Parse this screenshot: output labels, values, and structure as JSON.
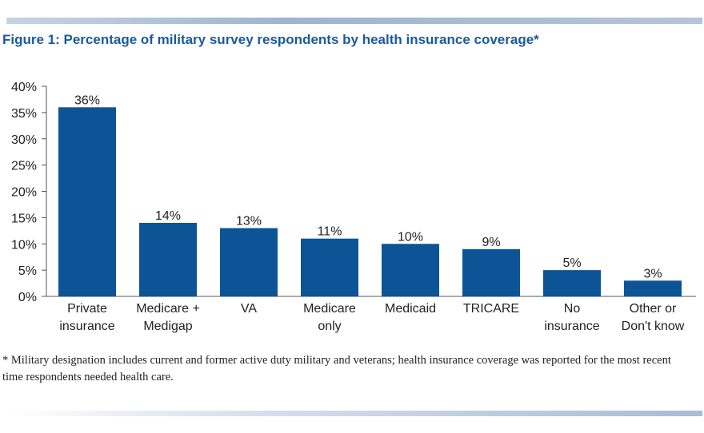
{
  "chart_data": {
    "type": "bar",
    "title": "Figure 1: Percentage of military survey respondents by health insurance coverage*",
    "xlabel": "",
    "ylabel": "",
    "ylim": [
      0,
      40
    ],
    "yticks": [
      "0%",
      "5%",
      "10%",
      "15%",
      "20%",
      "25%",
      "30%",
      "35%",
      "40%"
    ],
    "categories": [
      [
        "Private",
        "insurance"
      ],
      [
        "Medicare +",
        "Medigap"
      ],
      [
        "VA"
      ],
      [
        "Medicare",
        "only"
      ],
      [
        "Medicaid"
      ],
      [
        "TRICARE"
      ],
      [
        "No",
        "insurance"
      ],
      [
        "Other or",
        "Don't know"
      ]
    ],
    "values": [
      36,
      14,
      13,
      11,
      10,
      9,
      5,
      3
    ],
    "value_labels": [
      "36%",
      "14%",
      "13%",
      "11%",
      "10%",
      "9%",
      "5%",
      "3%"
    ],
    "bar_color": "#0d5496",
    "grid": false
  },
  "footnote": "* Military designation includes current and former active duty military and veterans; health insurance coverage was reported for the most recent time respondents needed health care.",
  "colors": {
    "title": "#1b5a9a",
    "bar": "#0d5496"
  }
}
